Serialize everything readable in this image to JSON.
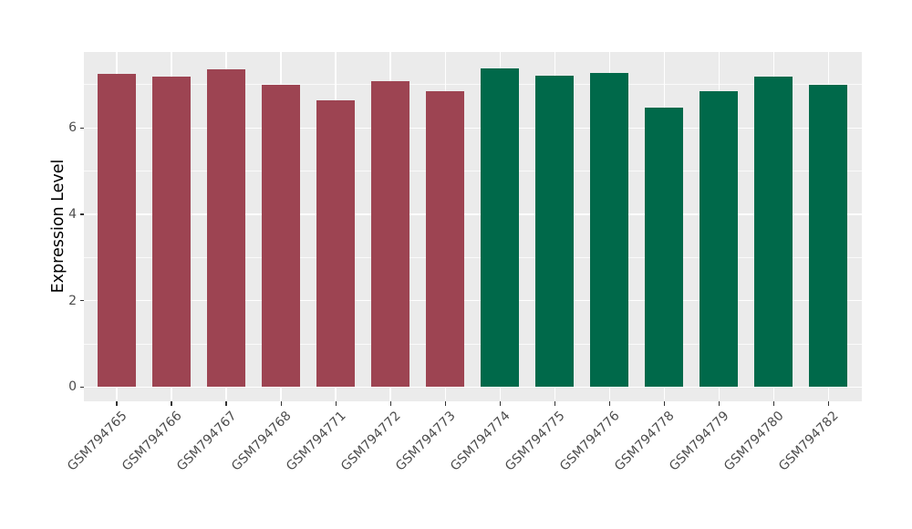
{
  "theme": {
    "figure_background": "#FFFFFF",
    "panel_background": "#EBEBEB",
    "grid_major_color": "#FFFFFF",
    "grid_minor_color": "#FFFFFF",
    "tick_mark_color": "#333333",
    "axis_text_color": "#4D4D4D",
    "axis_title_color": "#000000"
  },
  "chart_data": {
    "type": "bar",
    "title": "",
    "xlabel": "",
    "ylabel": "Expression Level",
    "legend": "none",
    "grid": true,
    "ylim": [
      -0.33,
      7.76
    ],
    "yticks": [
      0,
      2,
      4,
      6
    ],
    "yticks_minor": [
      1,
      3,
      5,
      7
    ],
    "x_label_rotation_deg": 45,
    "group_colors": {
      "group1": "#9D4452",
      "group2": "#00694A"
    },
    "categories": [
      "GSM794765",
      "GSM794766",
      "GSM794767",
      "GSM794768",
      "GSM794771",
      "GSM794772",
      "GSM794773",
      "GSM794774",
      "GSM794775",
      "GSM794776",
      "GSM794778",
      "GSM794779",
      "GSM794780",
      "GSM794782"
    ],
    "points": [
      {
        "label": "GSM794765",
        "value": 7.25,
        "color": "#9D4452"
      },
      {
        "label": "GSM794766",
        "value": 7.2,
        "color": "#9D4452"
      },
      {
        "label": "GSM794767",
        "value": 7.35,
        "color": "#9D4452"
      },
      {
        "label": "GSM794768",
        "value": 7.0,
        "color": "#9D4452"
      },
      {
        "label": "GSM794771",
        "value": 6.63,
        "color": "#9D4452"
      },
      {
        "label": "GSM794772",
        "value": 7.09,
        "color": "#9D4452"
      },
      {
        "label": "GSM794773",
        "value": 6.86,
        "color": "#9D4452"
      },
      {
        "label": "GSM794774",
        "value": 7.39,
        "color": "#00694A"
      },
      {
        "label": "GSM794775",
        "value": 7.21,
        "color": "#00694A"
      },
      {
        "label": "GSM794776",
        "value": 7.27,
        "color": "#00694A"
      },
      {
        "label": "GSM794778",
        "value": 6.48,
        "color": "#00694A"
      },
      {
        "label": "GSM794779",
        "value": 6.86,
        "color": "#00694A"
      },
      {
        "label": "GSM794780",
        "value": 7.19,
        "color": "#00694A"
      },
      {
        "label": "GSM794782",
        "value": 7.01,
        "color": "#00694A"
      }
    ]
  }
}
